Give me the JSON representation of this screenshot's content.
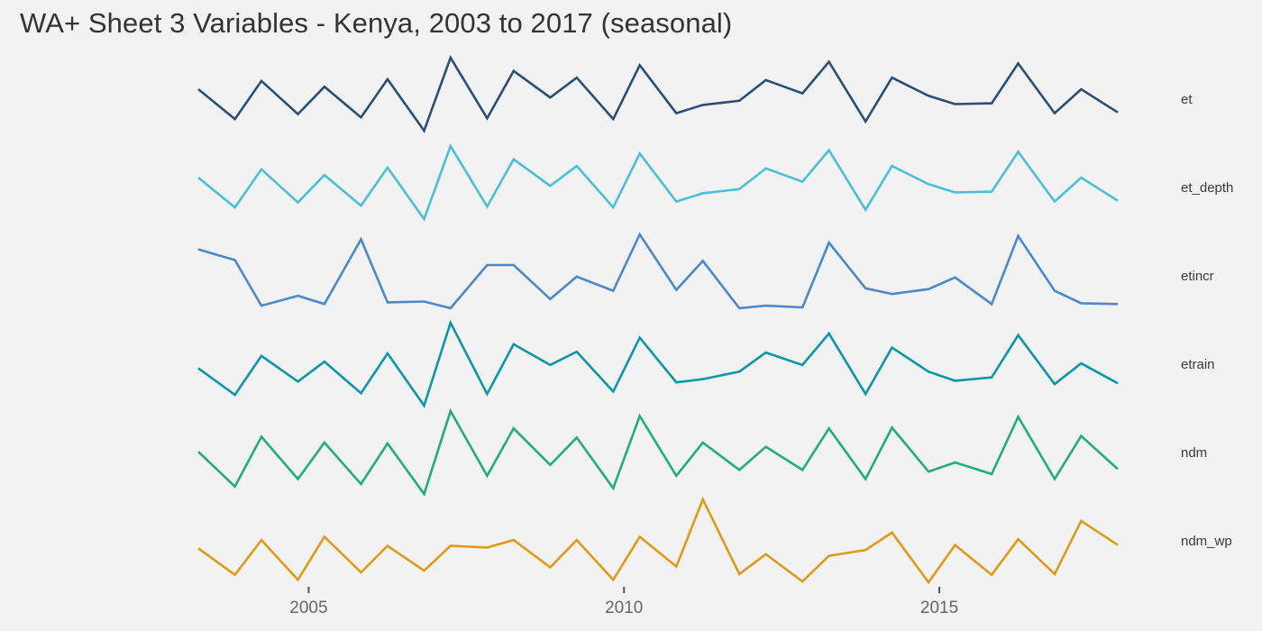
{
  "chart_data": {
    "type": "line",
    "title": "WA+ Sheet 3 Variables - Kenya, 2003 to 2017 (seasonal)",
    "xlabel": "",
    "ylabel": "",
    "x_tick_labels": [
      "2005",
      "2010",
      "2015"
    ],
    "x_ticks": [
      2005,
      2010,
      2015
    ],
    "x": [
      2003.25,
      2003.83,
      2004.25,
      2004.83,
      2005.25,
      2005.83,
      2006.25,
      2006.83,
      2007.25,
      2007.83,
      2008.25,
      2008.83,
      2009.25,
      2009.83,
      2010.25,
      2010.83,
      2011.25,
      2011.83,
      2012.25,
      2012.83,
      2013.25,
      2013.83,
      2014.25,
      2014.83,
      2015.25,
      2015.83,
      2016.25,
      2016.83,
      2017.25,
      2017.83
    ],
    "xlim": [
      2001.5,
      2019.3
    ],
    "grid": false,
    "legend": "none",
    "facet_layout": "stacked rows, series name at right",
    "y_scale": "free per series, no y axis shown",
    "series": [
      {
        "name": "et",
        "color": "#2b4f73",
        "values": [
          0.62,
          0.26,
          0.72,
          0.32,
          0.65,
          0.28,
          0.74,
          0.12,
          1.0,
          0.27,
          0.84,
          0.52,
          0.76,
          0.26,
          0.91,
          0.33,
          0.43,
          0.48,
          0.73,
          0.57,
          0.95,
          0.23,
          0.76,
          0.54,
          0.44,
          0.45,
          0.93,
          0.33,
          0.62,
          0.34
        ]
      },
      {
        "name": "et_depth",
        "color": "#4bbfd6",
        "values": [
          0.62,
          0.26,
          0.72,
          0.32,
          0.65,
          0.28,
          0.74,
          0.12,
          1.0,
          0.27,
          0.84,
          0.52,
          0.76,
          0.26,
          0.91,
          0.33,
          0.43,
          0.48,
          0.73,
          0.57,
          0.95,
          0.23,
          0.76,
          0.54,
          0.44,
          0.45,
          0.93,
          0.33,
          0.62,
          0.34
        ]
      },
      {
        "name": "etincr",
        "color": "#4d88c8",
        "values": [
          0.82,
          0.69,
          0.14,
          0.26,
          0.16,
          0.94,
          0.18,
          0.19,
          0.11,
          0.63,
          0.63,
          0.22,
          0.49,
          0.32,
          1.0,
          0.33,
          0.68,
          0.11,
          0.14,
          0.12,
          0.9,
          0.35,
          0.28,
          0.34,
          0.48,
          0.16,
          0.98,
          0.32,
          0.17,
          0.16
        ]
      },
      {
        "name": "etrain",
        "color": "#0d96a8",
        "values": [
          0.45,
          0.13,
          0.6,
          0.29,
          0.53,
          0.15,
          0.63,
          0.0,
          1.0,
          0.14,
          0.74,
          0.49,
          0.65,
          0.17,
          0.82,
          0.28,
          0.32,
          0.41,
          0.64,
          0.49,
          0.87,
          0.14,
          0.7,
          0.41,
          0.3,
          0.34,
          0.85,
          0.26,
          0.51,
          0.27
        ]
      },
      {
        "name": "ndm",
        "color": "#21ad80",
        "values": [
          0.51,
          0.09,
          0.69,
          0.18,
          0.62,
          0.12,
          0.61,
          0.0,
          1.0,
          0.22,
          0.79,
          0.35,
          0.68,
          0.07,
          0.94,
          0.22,
          0.62,
          0.29,
          0.57,
          0.29,
          0.79,
          0.18,
          0.8,
          0.27,
          0.38,
          0.24,
          0.93,
          0.18,
          0.7,
          0.3
        ]
      },
      {
        "name": "ndm_wp",
        "color": "#e09a1a",
        "values": [
          0.41,
          0.09,
          0.51,
          0.03,
          0.55,
          0.12,
          0.44,
          0.14,
          0.44,
          0.42,
          0.51,
          0.18,
          0.51,
          0.03,
          0.55,
          0.19,
          1.0,
          0.1,
          0.34,
          0.01,
          0.32,
          0.39,
          0.6,
          0.0,
          0.45,
          0.09,
          0.52,
          0.1,
          0.74,
          0.45
        ]
      }
    ]
  }
}
